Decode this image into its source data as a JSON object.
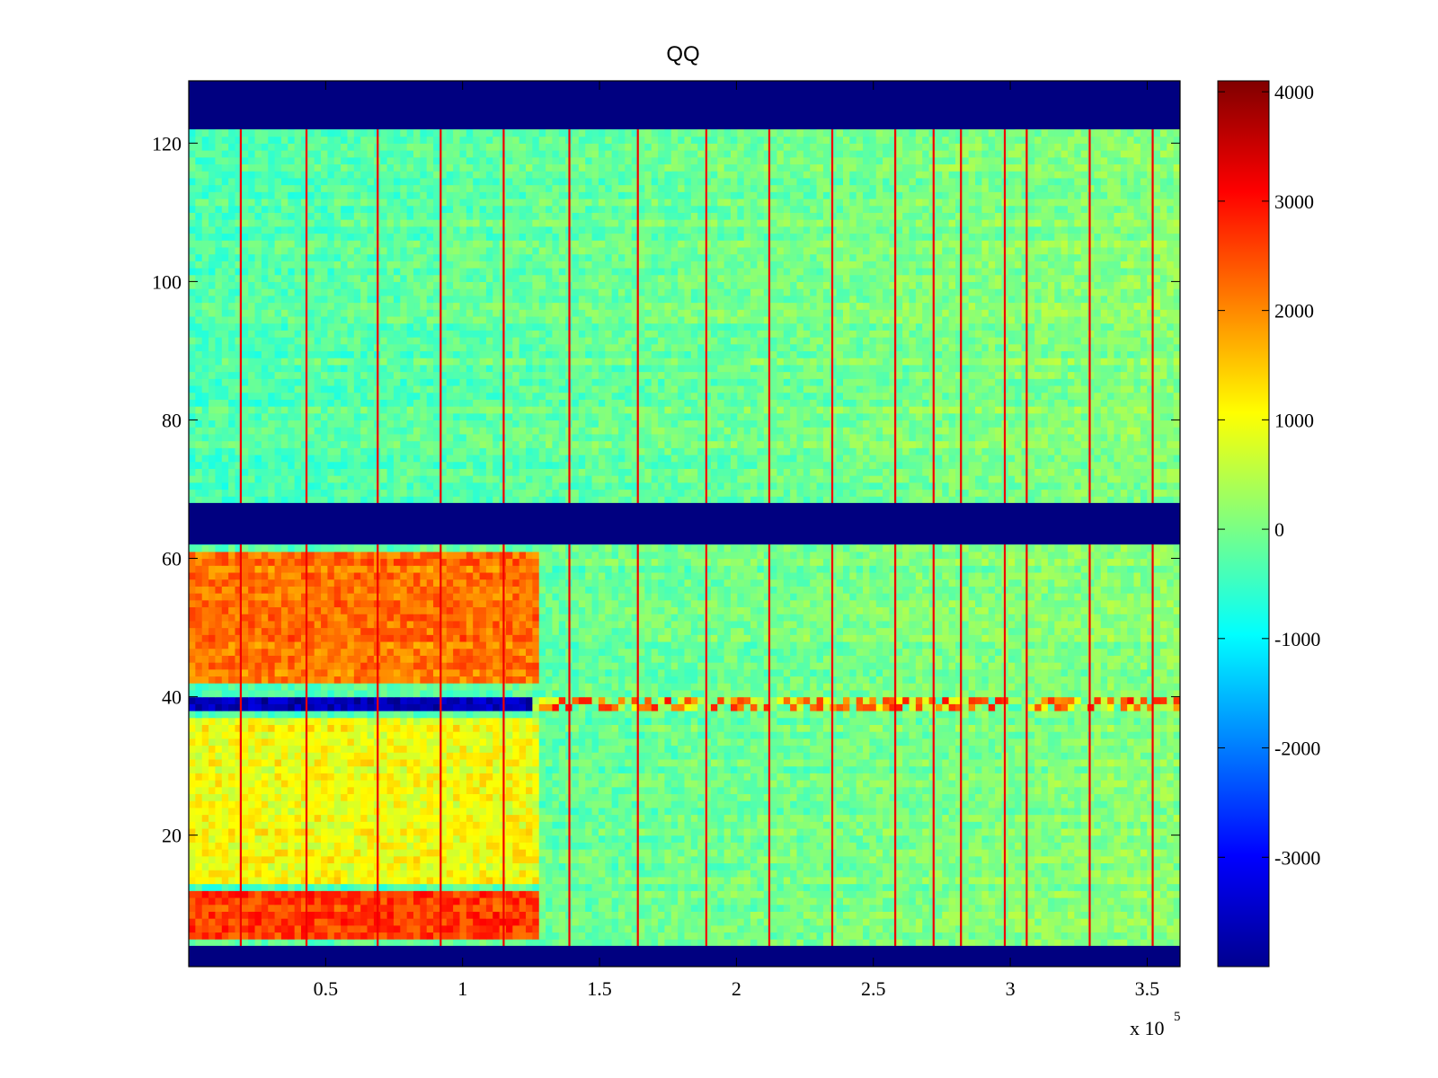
{
  "chart_data": {
    "type": "heatmap",
    "title": "QQ",
    "colormap": "jet",
    "x_range": [
      0,
      362000
    ],
    "y_range": [
      1,
      129
    ],
    "x_ticks": [
      {
        "value": 50000,
        "label": "0.5"
      },
      {
        "value": 100000,
        "label": "1"
      },
      {
        "value": 150000,
        "label": "1.5"
      },
      {
        "value": 200000,
        "label": "2"
      },
      {
        "value": 250000,
        "label": "2.5"
      },
      {
        "value": 300000,
        "label": "3"
      },
      {
        "value": 350000,
        "label": "3.5"
      }
    ],
    "x_multiplier": {
      "base": "x 10",
      "exponent": "5"
    },
    "y_ticks": [
      {
        "value": 20,
        "label": "20"
      },
      {
        "value": 40,
        "label": "40"
      },
      {
        "value": 60,
        "label": "60"
      },
      {
        "value": 80,
        "label": "80"
      },
      {
        "value": 100,
        "label": "100"
      },
      {
        "value": 120,
        "label": "120"
      }
    ],
    "colorbar": {
      "range": [
        -4000,
        4100
      ],
      "ticks": [
        {
          "value": 4000,
          "label": "4000"
        },
        {
          "value": 3000,
          "label": "3000"
        },
        {
          "value": 2000,
          "label": "2000"
        },
        {
          "value": 1000,
          "label": "1000"
        },
        {
          "value": 0,
          "label": "0"
        },
        {
          "value": -1000,
          "label": "-1000"
        },
        {
          "value": -2000,
          "label": "-2000"
        },
        {
          "value": -3000,
          "label": "-3000"
        }
      ]
    },
    "blank_row_bands": [
      {
        "y_from": 1,
        "y_to": 4,
        "value": -4000
      },
      {
        "y_from": 62,
        "y_to": 68,
        "value": -4000
      },
      {
        "y_from": 122,
        "y_to": 129,
        "value": -4000
      }
    ],
    "spike_columns_x": [
      19000,
      43000,
      69000,
      92000,
      115000,
      139000,
      164000,
      189000,
      212000,
      235000,
      258000,
      272000,
      282000,
      298000,
      306000,
      329000,
      352000
    ],
    "high_value_regions": [
      {
        "x_from": 0,
        "x_to": 127000,
        "y_from": 5,
        "y_to": 12,
        "value": 2600
      },
      {
        "x_from": 0,
        "x_to": 127000,
        "y_from": 42,
        "y_to": 61,
        "value": 2200
      },
      {
        "x_from": 0,
        "x_to": 127000,
        "y_from": 13,
        "y_to": 37,
        "value": 1000
      }
    ],
    "special_row": {
      "y": 39,
      "left_value": -4000,
      "right_value": 3000
    }
  }
}
